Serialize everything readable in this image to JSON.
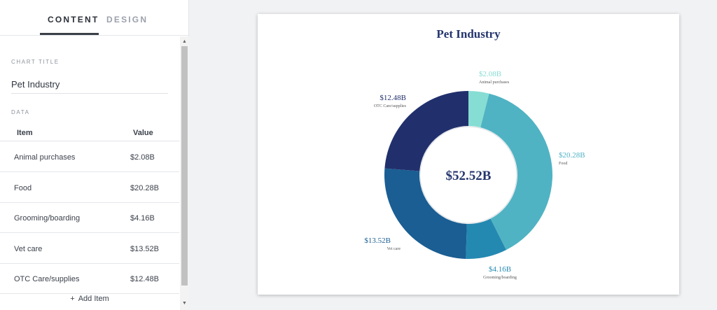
{
  "panel": {
    "tabs": [
      {
        "label": "CONTENT",
        "active": true
      },
      {
        "label": "DESIGN",
        "active": false
      }
    ],
    "chart_title_label": "CHART TITLE",
    "chart_title_value": "Pet Industry",
    "data_label": "DATA",
    "table": {
      "headers": {
        "item": "Item",
        "value": "Value"
      },
      "rows": [
        {
          "item": "Animal purchases",
          "value": "$2.08B"
        },
        {
          "item": "Food",
          "value": "$20.28B"
        },
        {
          "item": "Grooming/boarding",
          "value": "$4.16B"
        },
        {
          "item": "Vet care",
          "value": "$13.52B"
        },
        {
          "item": "OTC Care/supplies",
          "value": "$12.48B"
        }
      ]
    },
    "add_item_label": "Add Item",
    "add_item_icon": "plus-icon"
  },
  "chart_data": {
    "type": "pie",
    "variant": "donut",
    "title": "Pet Industry",
    "center_label": "$52.52B",
    "slices": [
      {
        "name": "Animal purchases",
        "value": 2.08,
        "label": "$2.08B",
        "color": "#86ddd3"
      },
      {
        "name": "Food",
        "value": 20.28,
        "label": "$20.28B",
        "color": "#4fb3c3"
      },
      {
        "name": "Grooming/boarding",
        "value": 4.16,
        "label": "$4.16B",
        "color": "#2489b1"
      },
      {
        "name": "Vet care",
        "value": 13.52,
        "label": "$13.52B",
        "color": "#1a5e93"
      },
      {
        "name": "OTC Care/supplies",
        "value": 12.48,
        "label": "$12.48B",
        "color": "#21306c"
      }
    ]
  }
}
